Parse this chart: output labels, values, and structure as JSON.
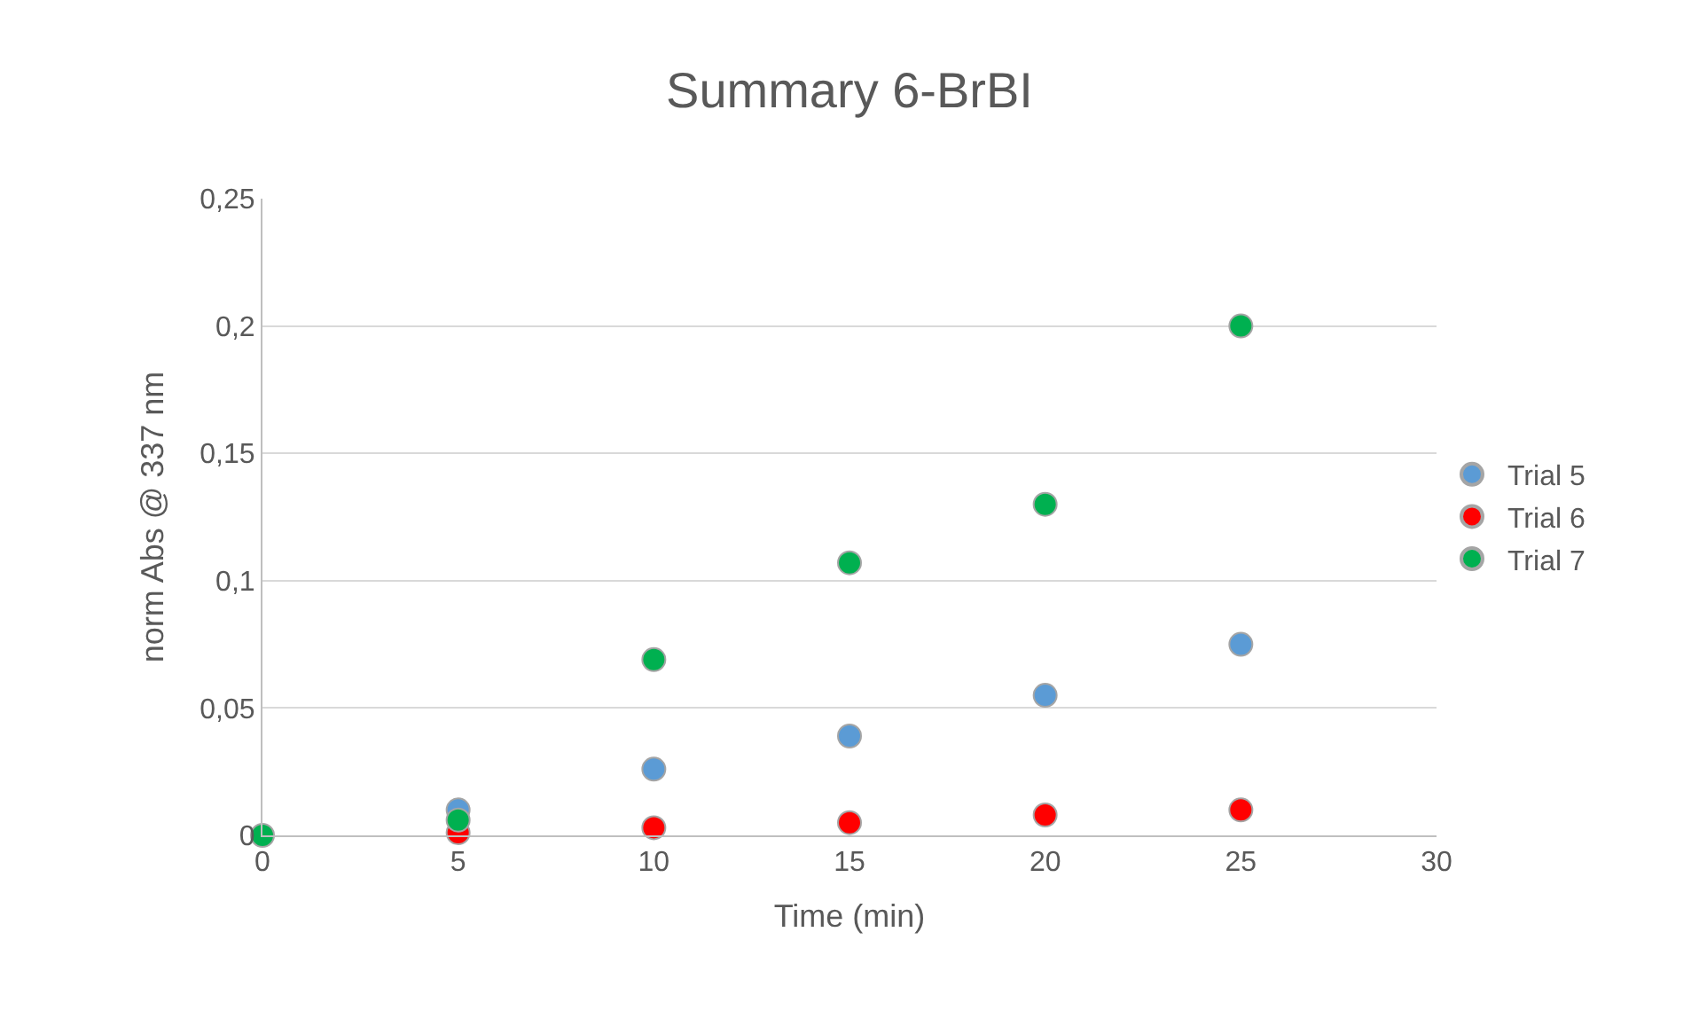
{
  "chart_data": {
    "type": "scatter",
    "title": "Summary 6-BrBI",
    "xlabel": "Time (min)",
    "ylabel": "norm Abs @ 337 nm",
    "x": [
      0,
      5,
      10,
      15,
      20,
      25
    ],
    "series": [
      {
        "name": "Trial 5",
        "color": "#5b9bd5",
        "values": [
          null,
          0.01,
          0.026,
          0.039,
          0.055,
          0.075
        ]
      },
      {
        "name": "Trial 6",
        "color": "#ff0000",
        "values": [
          null,
          0.001,
          0.003,
          0.005,
          0.008,
          0.01
        ]
      },
      {
        "name": "Trial 7",
        "color": "#00b050",
        "values": [
          0,
          0.006,
          0.069,
          0.107,
          0.13,
          0.2
        ]
      }
    ],
    "xlim": [
      0,
      30
    ],
    "xticks": [
      0,
      5,
      10,
      15,
      20,
      25,
      30
    ],
    "ylim": [
      0,
      0.25
    ],
    "yticks": [
      0,
      {
        "value": 0.05,
        "label": "0,05"
      },
      {
        "value": 0.1,
        "label": "0,1"
      },
      {
        "value": 0.15,
        "label": "0,15"
      },
      {
        "value": 0.2,
        "label": "0,2"
      },
      {
        "value": 0.25,
        "label": "0,25"
      }
    ],
    "grid": "y",
    "legend": "right",
    "marker": "circle"
  }
}
